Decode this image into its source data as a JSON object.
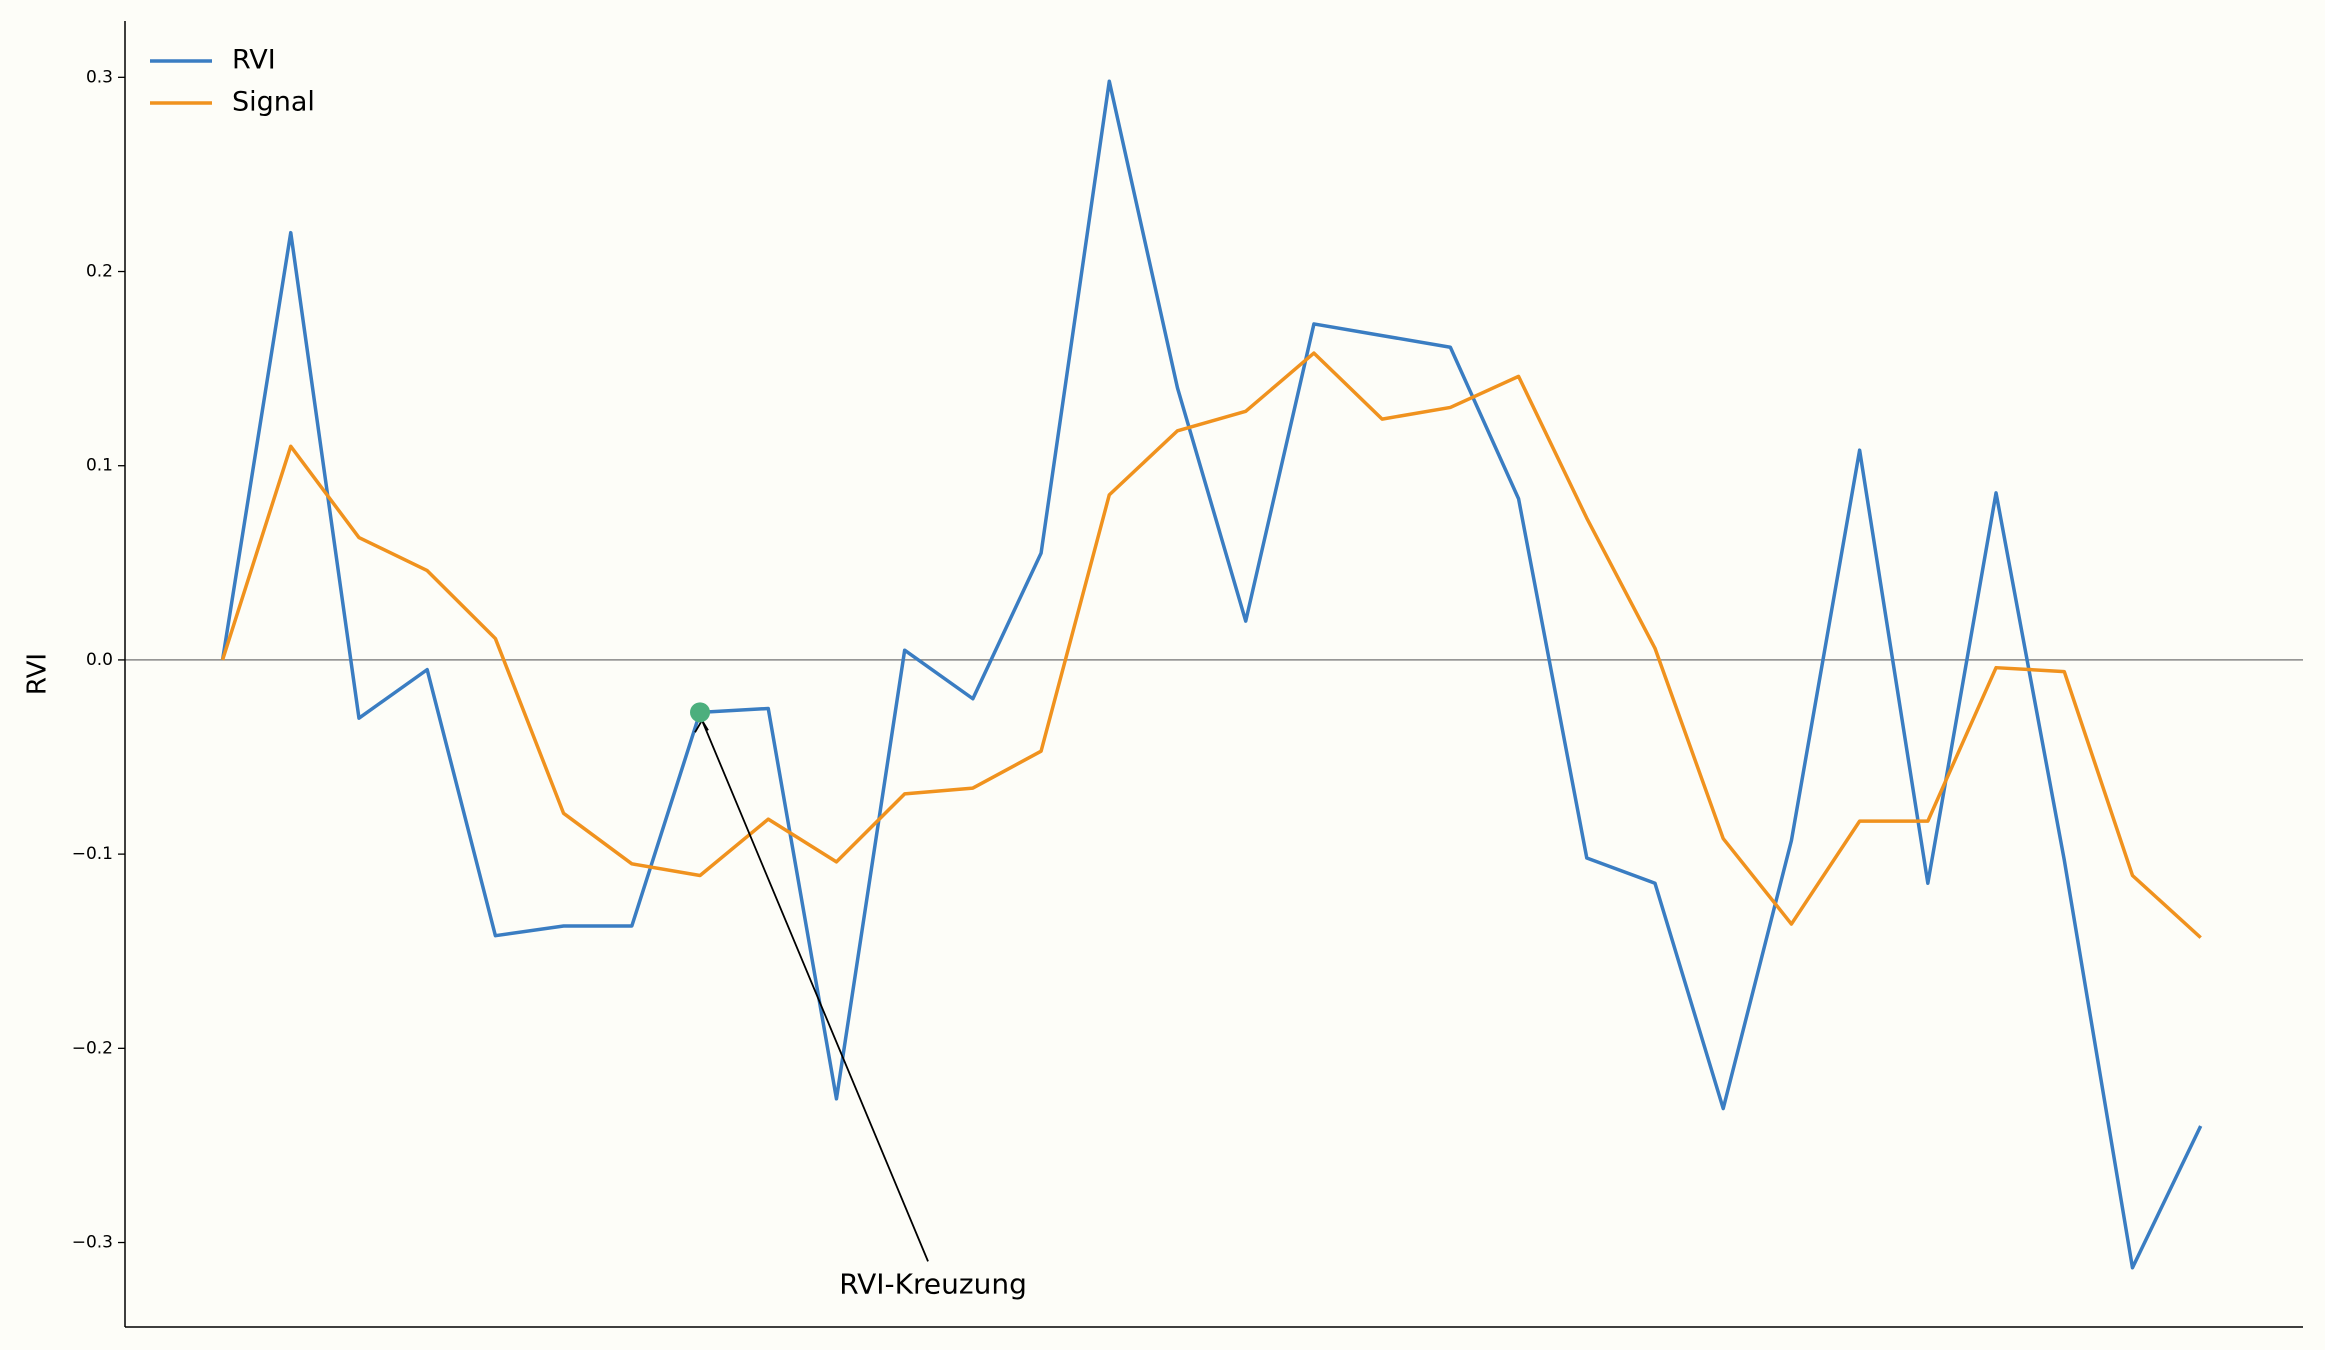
{
  "chart_data": {
    "type": "line",
    "y_label": "RVI",
    "x": [
      0,
      1,
      2,
      3,
      4,
      5,
      6,
      7,
      8,
      9,
      10,
      11,
      12,
      13,
      14,
      15,
      16,
      17,
      18,
      19,
      20,
      21,
      22,
      23,
      24,
      25,
      26,
      27,
      28,
      29
    ],
    "series": [
      {
        "name": "RVI",
        "color": "#3a7dc2",
        "values": [
          0,
          0.22,
          -0.03,
          -0.005,
          -0.142,
          -0.137,
          -0.137,
          -0.027,
          -0.025,
          -0.226,
          0.005,
          -0.02,
          0.055,
          0.298,
          0.14,
          0.02,
          0.173,
          0.167,
          0.161,
          0.083,
          -0.102,
          -0.115,
          -0.231,
          -0.093,
          0.108,
          -0.115,
          0.086,
          -0.103,
          -0.313,
          -0.24
        ]
      },
      {
        "name": "Signal",
        "color": "#f0921e",
        "values": [
          0,
          0.11,
          0.063,
          0.046,
          0.011,
          -0.079,
          -0.105,
          -0.111,
          -0.082,
          -0.104,
          -0.069,
          -0.066,
          -0.047,
          0.085,
          0.118,
          0.128,
          0.158,
          0.124,
          0.13,
          0.146,
          0.073,
          0.006,
          -0.092,
          -0.136,
          -0.083,
          -0.083,
          -0.004,
          -0.006,
          -0.111,
          -0.143
        ]
      }
    ],
    "xlim": [
      -1.43,
      30.5
    ],
    "ylim": [
      -0.3435,
      0.329
    ],
    "yticks": [
      {
        "value": -0.3,
        "label": "−0.3"
      },
      {
        "value": -0.2,
        "label": "−0.2"
      },
      {
        "value": -0.1,
        "label": "−0.1"
      },
      {
        "value": 0,
        "label": "0.0"
      },
      0.1,
      0.2,
      0.3
    ],
    "zero_line": true,
    "legend": "upper-left",
    "annotations": [
      {
        "text": "RVI-Kreuzung",
        "x": 7,
        "y": -0.027,
        "color": "#4caf7d"
      }
    ]
  }
}
